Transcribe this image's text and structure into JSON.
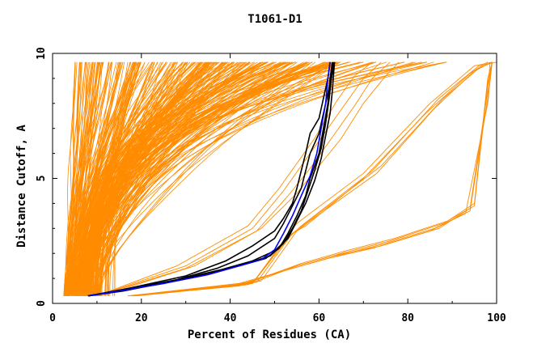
{
  "chart_data": {
    "type": "line",
    "title": "T1061-D1",
    "xlabel": "Percent of Residues (CA)",
    "ylabel": "Distance Cutoff, A",
    "xlim": [
      0,
      100
    ],
    "ylim": [
      0,
      10
    ],
    "x_ticks": [
      "0",
      "20",
      "40",
      "60",
      "80",
      "100"
    ],
    "y_ticks": [
      "0",
      "5",
      "10"
    ],
    "colors": {
      "bulk": "#ff8c00",
      "highlight_black": "#000000",
      "highlight_blue": "#0000ff"
    },
    "bulk_groups": [
      {
        "count": 70,
        "x0": [
          2.5,
          4
        ],
        "xend": [
          5,
          20
        ],
        "p": [
          0.6,
          1.6
        ]
      },
      {
        "count": 90,
        "x0": [
          3,
          9
        ],
        "xend": [
          18,
          40
        ],
        "p": [
          1.0,
          2.4
        ]
      },
      {
        "count": 110,
        "x0": [
          5,
          11
        ],
        "xend": [
          35,
          65
        ],
        "p": [
          1.4,
          3.2
        ]
      },
      {
        "count": 25,
        "x0": [
          8,
          14
        ],
        "xend": [
          60,
          90
        ],
        "p": [
          2.5,
          4.0
        ]
      }
    ],
    "bulk_curves": [
      {
        "x": [
          17,
          45,
          52,
          55,
          70,
          85,
          95,
          99
        ],
        "y": [
          0.3,
          0.8,
          2.5,
          3.2,
          5.2,
          8.0,
          9.5,
          9.65
        ]
      },
      {
        "x": [
          17,
          45,
          53,
          56,
          72,
          87,
          96,
          100
        ],
        "y": [
          0.3,
          0.8,
          2.6,
          3.1,
          5.3,
          8.2,
          9.5,
          9.65
        ]
      },
      {
        "x": [
          18,
          46,
          54,
          57,
          74,
          88,
          96,
          99
        ],
        "y": [
          0.3,
          0.85,
          2.8,
          3.2,
          5.5,
          8.2,
          9.4,
          9.65
        ]
      },
      {
        "x": [
          17,
          47,
          55,
          58,
          73,
          86,
          95,
          99
        ],
        "y": [
          0.3,
          0.9,
          2.9,
          3.3,
          5.2,
          7.8,
          9.3,
          9.65
        ]
      },
      {
        "x": [
          18,
          45,
          53,
          57,
          70,
          84,
          94,
          98
        ],
        "y": [
          0.3,
          0.8,
          2.7,
          3.1,
          5.0,
          7.6,
          9.2,
          9.65
        ]
      },
      {
        "x": [
          18,
          40,
          52,
          62,
          72,
          85,
          93,
          98,
          99
        ],
        "y": [
          0.3,
          0.7,
          1.3,
          1.8,
          2.2,
          2.9,
          3.6,
          8.0,
          9.65
        ]
      },
      {
        "x": [
          18,
          42,
          53,
          63,
          74,
          87,
          94,
          98,
          99
        ],
        "y": [
          0.3,
          0.7,
          1.4,
          1.9,
          2.3,
          3.0,
          3.8,
          8.5,
          9.65
        ]
      },
      {
        "x": [
          19,
          44,
          55,
          65,
          76,
          88,
          95,
          98,
          99
        ],
        "y": [
          0.3,
          0.75,
          1.5,
          2.0,
          2.5,
          3.2,
          3.9,
          8.8,
          9.65
        ]
      },
      {
        "x": [
          18,
          41,
          54,
          64,
          75,
          86,
          94,
          98,
          98.5
        ],
        "y": [
          0.3,
          0.7,
          1.4,
          1.9,
          2.4,
          3.0,
          3.7,
          8.2,
          9.65
        ]
      },
      {
        "x": [
          18,
          43,
          56,
          66,
          77,
          89,
          95,
          98,
          99
        ],
        "y": [
          0.3,
          0.75,
          1.6,
          2.1,
          2.6,
          3.3,
          4.0,
          9.0,
          9.65
        ]
      },
      {
        "x": [
          10,
          30,
          45,
          52,
          56,
          60,
          66,
          70,
          74
        ],
        "y": [
          0.3,
          1.5,
          3.0,
          4.5,
          5.5,
          6.5,
          8.0,
          9.0,
          9.65
        ]
      },
      {
        "x": [
          10,
          30,
          46,
          53,
          58,
          62,
          68,
          72,
          76
        ],
        "y": [
          0.3,
          1.4,
          2.9,
          4.3,
          5.4,
          6.4,
          7.9,
          9.0,
          9.65
        ]
      },
      {
        "x": [
          11,
          32,
          47,
          55,
          60,
          65,
          70,
          75,
          78
        ],
        "y": [
          0.3,
          1.5,
          3.0,
          4.4,
          5.5,
          6.6,
          8.0,
          9.1,
          9.65
        ]
      },
      {
        "x": [
          10,
          28,
          44,
          51,
          55,
          59,
          64,
          68,
          72
        ],
        "y": [
          0.3,
          1.5,
          3.1,
          4.6,
          5.6,
          6.6,
          8.1,
          9.1,
          9.65
        ]
      }
    ],
    "series": [
      {
        "color": "#000000",
        "x": [
          8,
          15,
          25,
          35,
          42,
          48,
          51,
          53,
          55,
          57,
          58,
          60,
          61,
          62,
          62.5,
          63
        ],
        "y": [
          0.3,
          0.5,
          0.8,
          1.2,
          1.5,
          1.8,
          2.2,
          2.8,
          3.5,
          4.3,
          5.0,
          6.0,
          7.0,
          8.0,
          9.0,
          9.65
        ]
      },
      {
        "color": "#000000",
        "x": [
          8,
          16,
          26,
          36,
          43,
          49,
          52,
          54,
          56,
          57.5,
          59,
          60.5,
          61.5,
          62.3,
          62.8,
          63.2
        ],
        "y": [
          0.3,
          0.5,
          0.85,
          1.25,
          1.55,
          1.9,
          2.4,
          3.0,
          3.7,
          4.5,
          5.3,
          6.2,
          7.2,
          8.2,
          9.0,
          9.65
        ]
      },
      {
        "color": "#000000",
        "x": [
          8,
          17,
          27,
          38,
          45,
          50,
          53,
          55,
          57,
          59,
          60.5,
          61.5,
          62.5,
          63,
          63.3,
          63.5
        ],
        "y": [
          0.3,
          0.55,
          0.9,
          1.35,
          1.7,
          2.1,
          2.6,
          3.3,
          4.0,
          4.9,
          5.8,
          6.7,
          7.6,
          8.5,
          9.2,
          9.65
        ]
      },
      {
        "color": "#000000",
        "x": [
          8,
          16,
          28,
          37,
          44,
          50,
          52,
          54,
          56,
          57,
          58,
          60,
          61,
          62,
          63,
          63.5
        ],
        "y": [
          0.3,
          0.55,
          0.95,
          1.4,
          1.9,
          2.6,
          3.2,
          3.9,
          4.6,
          5.3,
          6.0,
          6.8,
          7.6,
          8.4,
          9.2,
          9.65
        ]
      },
      {
        "color": "#000000",
        "x": [
          8,
          17,
          30,
          39,
          45,
          50,
          52,
          54,
          55,
          56,
          57,
          58,
          60,
          61,
          62,
          62.5
        ],
        "y": [
          0.3,
          0.6,
          1.1,
          1.7,
          2.3,
          2.9,
          3.4,
          4.0,
          4.6,
          5.3,
          6.0,
          6.8,
          7.4,
          8.2,
          9.0,
          9.65
        ]
      },
      {
        "color": "#0000ff",
        "x": [
          8,
          15,
          25,
          35,
          41,
          47,
          50,
          52,
          54,
          56,
          58,
          59.5,
          60.5,
          61.5,
          62,
          62.5
        ],
        "y": [
          0.3,
          0.5,
          0.8,
          1.15,
          1.45,
          1.75,
          2.15,
          2.8,
          3.5,
          4.3,
          5.1,
          6.0,
          7.0,
          8.0,
          9.0,
          9.65
        ]
      }
    ]
  }
}
